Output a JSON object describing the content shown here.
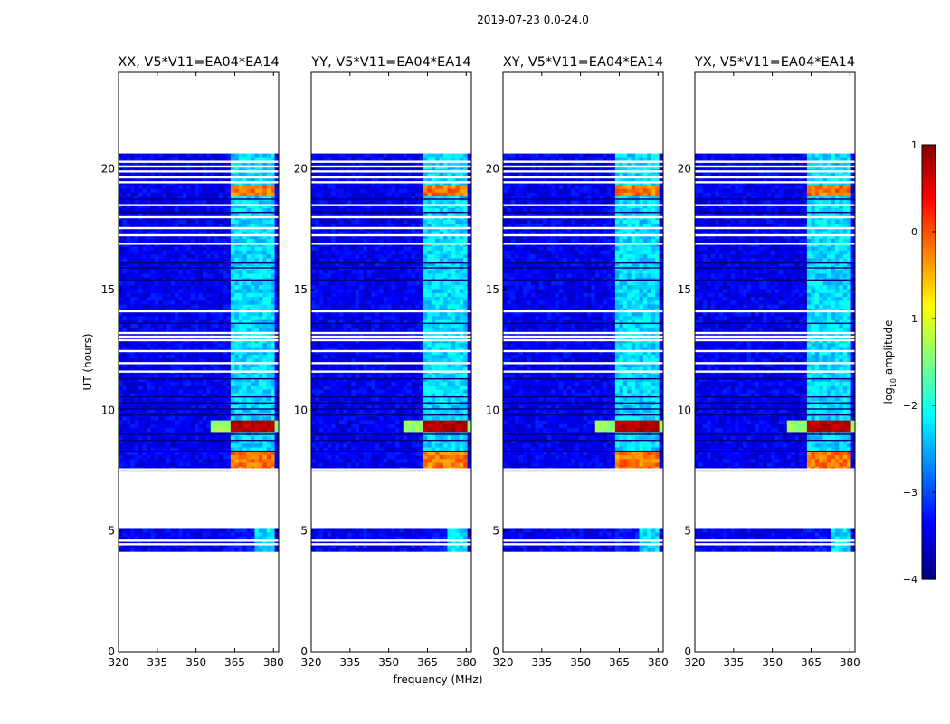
{
  "figure": {
    "suptitle": "2019-07-23 0.0-24.0",
    "ylabel": "UT (hours)",
    "xlabel": "frequency (MHz)"
  },
  "chart_data": {
    "type": "heatmap",
    "x_range": [
      320,
      382
    ],
    "x_ticks": [
      320,
      335,
      350,
      365,
      380
    ],
    "y_range": [
      0,
      24
    ],
    "y_ticks": [
      0,
      5,
      10,
      15,
      20
    ],
    "colorbar": {
      "label": "log10 amplitude",
      "label_main": "log",
      "label_sub": "10",
      "label_tail": " amplitude",
      "range": [
        -4,
        1
      ],
      "ticks": [
        -4,
        -3,
        -2,
        -1,
        0,
        1
      ],
      "tick_labels": [
        "−4",
        "−3",
        "−2",
        "−1",
        "0",
        "1"
      ],
      "colormap": "jet"
    },
    "panels": [
      {
        "title": "XX, V5*V11=EA04*EA14",
        "pol": "XX"
      },
      {
        "title": "YY, V5*V11=EA04*EA14",
        "pol": "YY"
      },
      {
        "title": "XY, V5*V11=EA04*EA14",
        "pol": "XY"
      },
      {
        "title": "YX, V5*V11=EA04*EA14",
        "pol": "YX"
      }
    ],
    "data_segments_ut_hours": [
      [
        4.2,
        5.05
      ],
      [
        7.45,
        20.65
      ]
    ],
    "rfi_bands_mhz": [
      [
        363.5,
        368
      ],
      [
        368.5,
        372.5
      ],
      [
        373.3,
        377
      ],
      [
        377.5,
        381
      ]
    ],
    "strong_rfi_hours": [
      [
        9.2,
        9.55
      ],
      [
        7.6,
        8.3
      ],
      [
        18.8,
        19.3
      ]
    ]
  }
}
